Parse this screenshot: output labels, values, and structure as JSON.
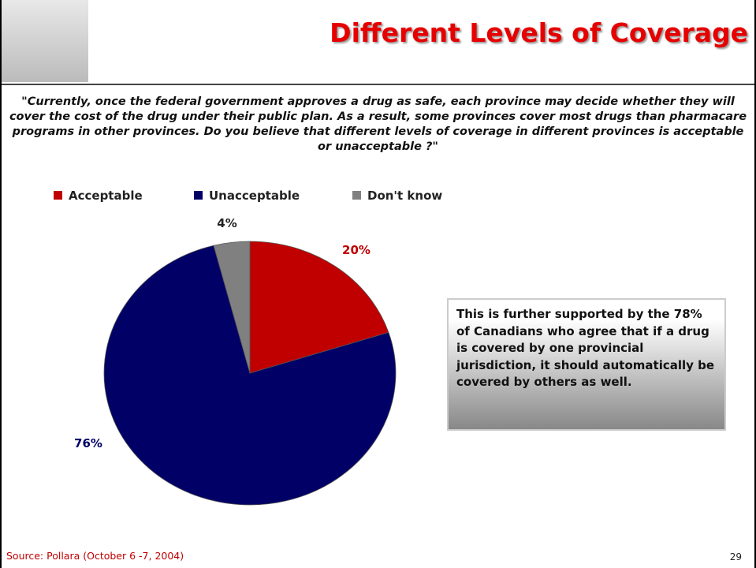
{
  "chart_data": {
    "type": "pie",
    "title": "Different Levels of Coverage",
    "subtitle": "\"Currently, once the federal government approves a drug as safe, each province may decide whether they will cover the cost of the drug under their public plan. As a result, some provinces cover most drugs than pharmacare programs in other provinces. Do you believe that different levels of coverage in different provinces is acceptable or unacceptable ?\"",
    "categories": [
      "Acceptable",
      "Unacceptable",
      "Don't know"
    ],
    "values": [
      20,
      76,
      4
    ],
    "value_labels": [
      "20%",
      "76%",
      "4%"
    ],
    "colors": [
      "#c00000",
      "#000066",
      "#808080"
    ],
    "annotation": "This is further supported by the 78% of Canadians who agree that if a drug is covered by one provincial jurisdiction, it should automatically be covered by others as well.",
    "source": "Source: Pollara (October 6 -7, 2004)",
    "page_number": "29"
  }
}
